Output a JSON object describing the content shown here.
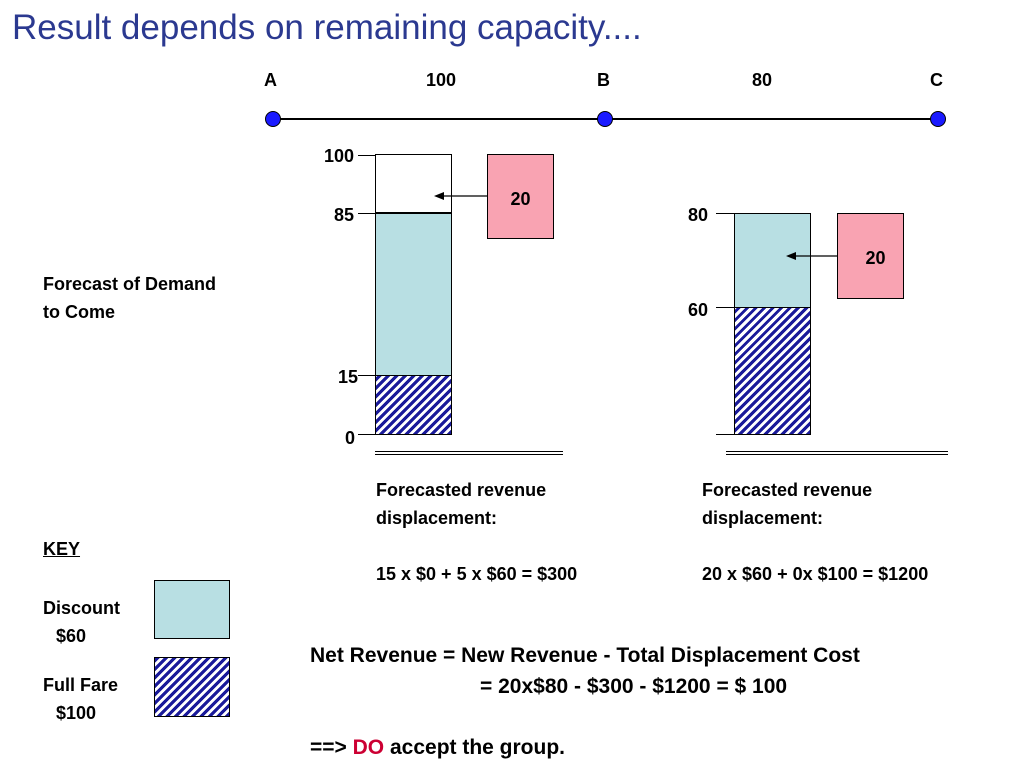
{
  "title": "Result depends on remaining capacity....",
  "route": {
    "nodes": [
      "A",
      "B",
      "C"
    ],
    "leg_capacities": [
      "100",
      "80"
    ]
  },
  "left_bar": {
    "ticks": [
      "100",
      "85",
      "15",
      "0"
    ],
    "box_value": "20",
    "revenue_line1": "Forecasted revenue",
    "revenue_line2": "displacement:",
    "revenue_formula": "15 x $0 + 5 x $60 = $300"
  },
  "right_bar": {
    "ticks": [
      "80",
      "60"
    ],
    "box_value": "20",
    "revenue_line1": "Forecasted revenue",
    "revenue_line2": "displacement:",
    "revenue_formula": "20 x $60 + 0x $100 = $1200"
  },
  "forecast_label_line1": "Forecast of Demand",
  "forecast_label_line2": "to Come",
  "key": {
    "heading": "KEY",
    "discount_label": "Discount",
    "discount_value": "$60",
    "fullfare_label": "Full Fare",
    "fullfare_value": "$100"
  },
  "net_revenue": {
    "line1": "Net Revenue = New Revenue - Total Displacement Cost",
    "line2": "=  20x$80  -  $300  -  $1200  = $ 100"
  },
  "conclusion": {
    "prefix": "==> ",
    "highlight": "DO",
    "suffix": " accept the group."
  },
  "colors": {
    "title": "#2b3990",
    "node": "#1a1aff",
    "discount": "#b8dfe3",
    "full_fare_hatch": "#1a1a9a",
    "group_box": "#f9a3b2",
    "highlight": "#cc0033"
  }
}
